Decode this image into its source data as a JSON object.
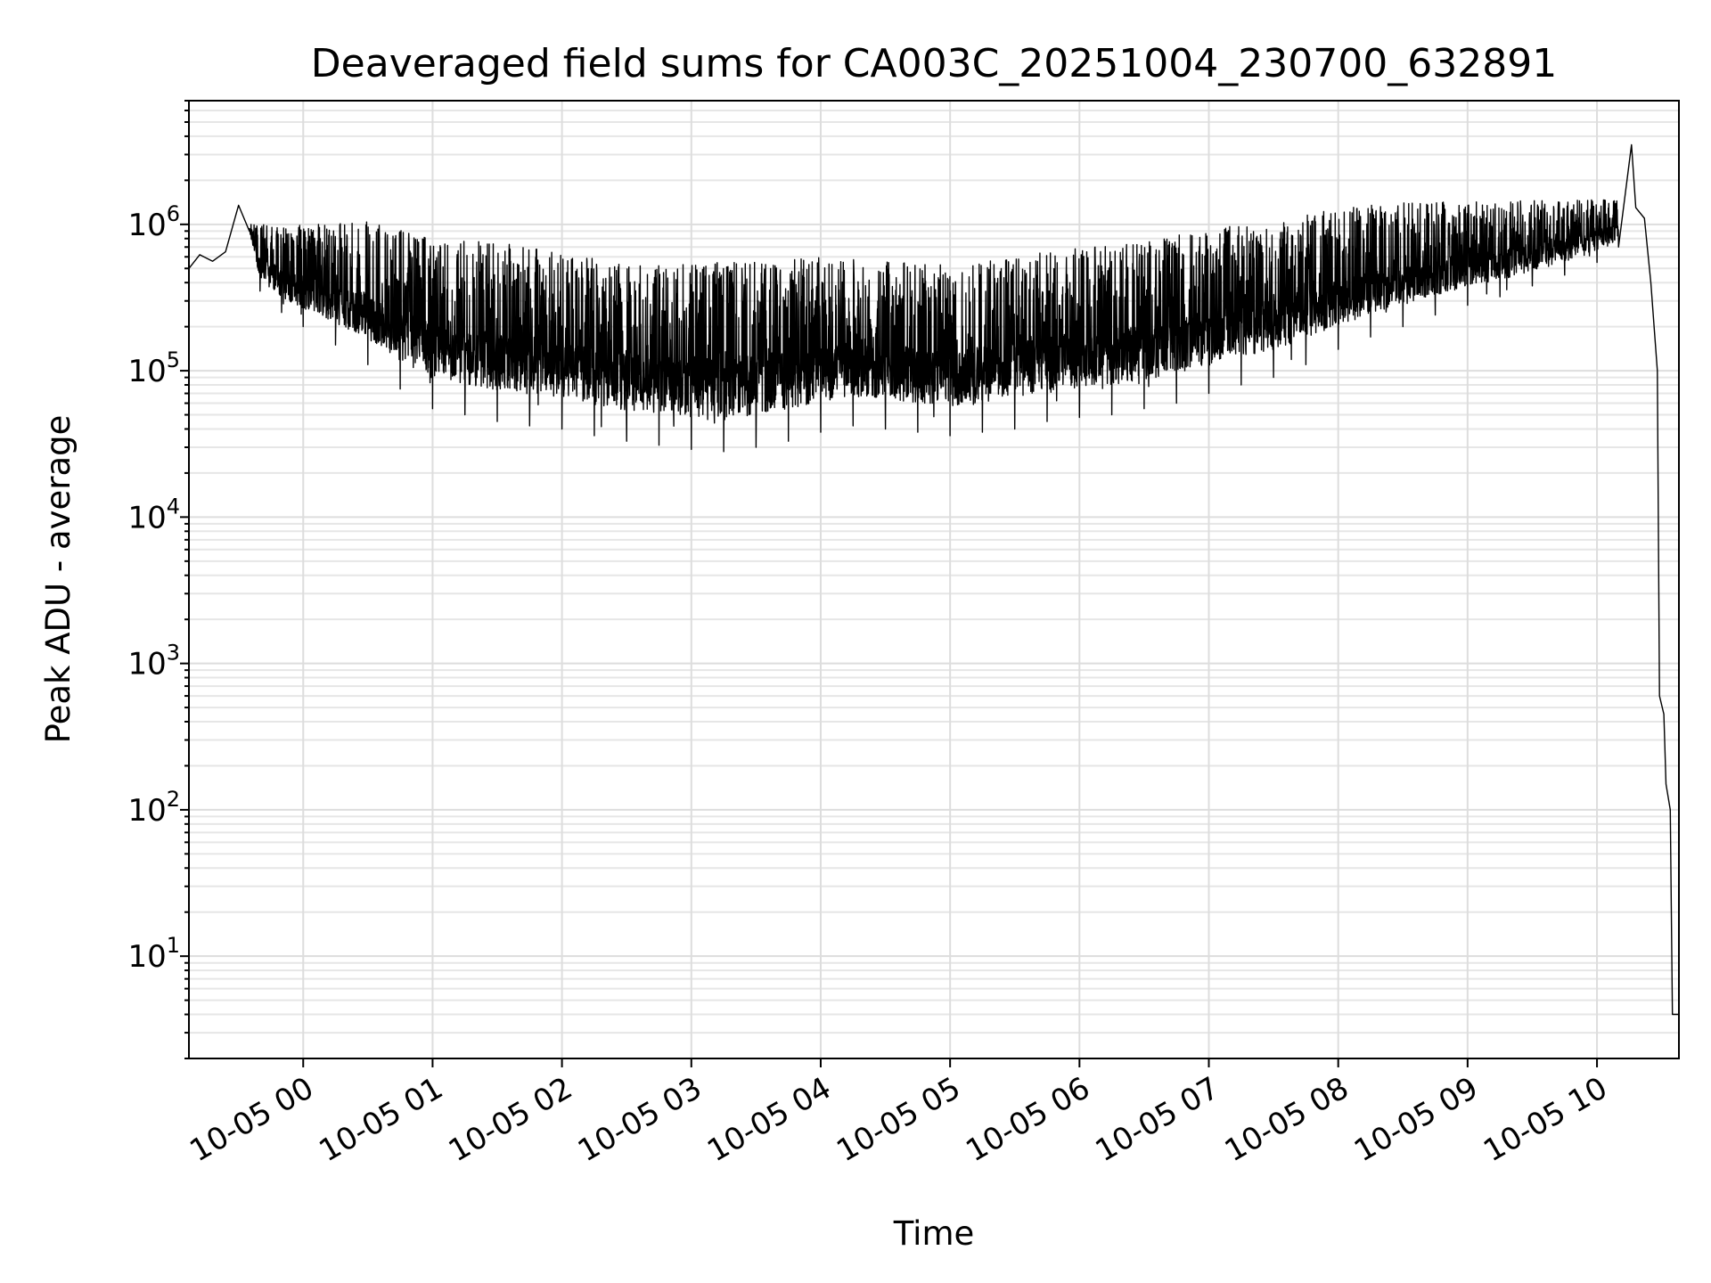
{
  "chart_data": {
    "type": "line",
    "title": "Deaveraged field sums for CA003C_20251004_230700_632891",
    "xlabel": "Time",
    "ylabel": "Peak ADU - average",
    "yscale": "log",
    "ylim": [
      2,
      7000000
    ],
    "xlim": [
      "2025-10-04 23:07",
      "2025-10-05 10:38"
    ],
    "grid": true,
    "x_ticks": [
      "2025-10-05 00:00",
      "2025-10-05 01:00",
      "2025-10-05 02:00",
      "2025-10-05 03:00",
      "2025-10-05 04:00",
      "2025-10-05 05:00",
      "2025-10-05 06:00",
      "2025-10-05 07:00",
      "2025-10-05 08:00",
      "2025-10-05 09:00",
      "2025-10-05 10:00"
    ],
    "x_tick_labels": [
      "10-05 00",
      "10-05 01",
      "10-05 02",
      "10-05 03",
      "10-05 04",
      "10-05 05",
      "10-05 06",
      "10-05 07",
      "10-05 08",
      "10-05 09",
      "10-05 10"
    ],
    "y_ticks": [
      10,
      100,
      1000,
      10000,
      100000,
      1000000
    ],
    "y_tick_base": "10",
    "y_tick_exponents": [
      "1",
      "2",
      "3",
      "4",
      "5",
      "6"
    ],
    "series": [
      {
        "color": "#000000",
        "points": [
          [
            "2025-10-04 23:07",
            500000
          ],
          [
            "2025-10-04 23:12",
            620000
          ],
          [
            "2025-10-04 23:18",
            560000
          ],
          [
            "2025-10-04 23:24",
            650000
          ],
          [
            "2025-10-04 23:30",
            1350000
          ],
          [
            "2025-10-04 23:35",
            900000
          ],
          [
            "2025-10-04 23:40",
            350000
          ],
          [
            "2025-10-04 23:50",
            250000
          ],
          [
            "2025-10-05 00:00",
            200000
          ],
          [
            "2025-10-05 00:15",
            150000
          ],
          [
            "2025-10-05 00:30",
            110000
          ],
          [
            "2025-10-05 00:45",
            75000
          ],
          [
            "2025-10-05 01:00",
            55000
          ],
          [
            "2025-10-05 01:15",
            50000
          ],
          [
            "2025-10-05 01:30",
            45000
          ],
          [
            "2025-10-05 01:45",
            42000
          ],
          [
            "2025-10-05 02:00",
            40000
          ],
          [
            "2025-10-05 02:15",
            36000
          ],
          [
            "2025-10-05 02:30",
            33000
          ],
          [
            "2025-10-05 02:45",
            31000
          ],
          [
            "2025-10-05 03:00",
            29000
          ],
          [
            "2025-10-05 03:15",
            28000
          ],
          [
            "2025-10-05 03:30",
            30000
          ],
          [
            "2025-10-05 03:45",
            33000
          ],
          [
            "2025-10-05 04:00",
            38000
          ],
          [
            "2025-10-05 04:15",
            42000
          ],
          [
            "2025-10-05 04:30",
            40000
          ],
          [
            "2025-10-05 04:45",
            38000
          ],
          [
            "2025-10-05 05:00",
            36000
          ],
          [
            "2025-10-05 05:15",
            38000
          ],
          [
            "2025-10-05 05:30",
            40000
          ],
          [
            "2025-10-05 05:45",
            45000
          ],
          [
            "2025-10-05 06:00",
            48000
          ],
          [
            "2025-10-05 06:15",
            50000
          ],
          [
            "2025-10-05 06:30",
            55000
          ],
          [
            "2025-10-05 06:45",
            60000
          ],
          [
            "2025-10-05 07:00",
            70000
          ],
          [
            "2025-10-05 07:15",
            80000
          ],
          [
            "2025-10-05 07:30",
            90000
          ],
          [
            "2025-10-05 07:45",
            110000
          ],
          [
            "2025-10-05 08:00",
            140000
          ],
          [
            "2025-10-05 08:15",
            170000
          ],
          [
            "2025-10-05 08:30",
            200000
          ],
          [
            "2025-10-05 08:45",
            240000
          ],
          [
            "2025-10-05 09:00",
            280000
          ],
          [
            "2025-10-05 09:15",
            320000
          ],
          [
            "2025-10-05 09:30",
            380000
          ],
          [
            "2025-10-05 09:45",
            450000
          ],
          [
            "2025-10-05 10:00",
            550000
          ],
          [
            "2025-10-05 10:10",
            700000
          ],
          [
            "2025-10-05 10:16",
            3500000
          ],
          [
            "2025-10-05 10:18",
            1300000
          ],
          [
            "2025-10-05 10:22",
            1100000
          ],
          [
            "2025-10-05 10:25",
            400000
          ],
          [
            "2025-10-05 10:28",
            100000
          ],
          [
            "2025-10-05 10:29",
            600
          ],
          [
            "2025-10-05 10:31",
            450
          ],
          [
            "2025-10-05 10:32",
            150
          ],
          [
            "2025-10-05 10:34",
            100
          ],
          [
            "2025-10-05 10:35",
            4
          ],
          [
            "2025-10-05 10:38",
            4
          ]
        ],
        "upper_envelope": [
          [
            "2025-10-04 23:35",
            1000000
          ],
          [
            "2025-10-05 00:00",
            1000000
          ],
          [
            "2025-10-05 00:30",
            1050000
          ],
          [
            "2025-10-05 01:00",
            800000
          ],
          [
            "2025-10-05 01:30",
            750000
          ],
          [
            "2025-10-05 02:00",
            650000
          ],
          [
            "2025-10-05 02:30",
            520000
          ],
          [
            "2025-10-05 03:00",
            550000
          ],
          [
            "2025-10-05 03:30",
            560000
          ],
          [
            "2025-10-05 04:00",
            600000
          ],
          [
            "2025-10-05 04:30",
            580000
          ],
          [
            "2025-10-05 05:00",
            520000
          ],
          [
            "2025-10-05 05:30",
            600000
          ],
          [
            "2025-10-05 06:00",
            700000
          ],
          [
            "2025-10-05 06:30",
            750000
          ],
          [
            "2025-10-05 07:00",
            950000
          ],
          [
            "2025-10-05 07:30",
            1050000
          ],
          [
            "2025-10-05 08:00",
            1300000
          ],
          [
            "2025-10-05 08:30",
            1400000
          ],
          [
            "2025-10-05 09:00",
            1450000
          ],
          [
            "2025-10-05 09:30",
            1450000
          ],
          [
            "2025-10-05 10:00",
            1500000
          ],
          [
            "2025-10-05 10:10",
            1450000
          ]
        ]
      }
    ]
  }
}
